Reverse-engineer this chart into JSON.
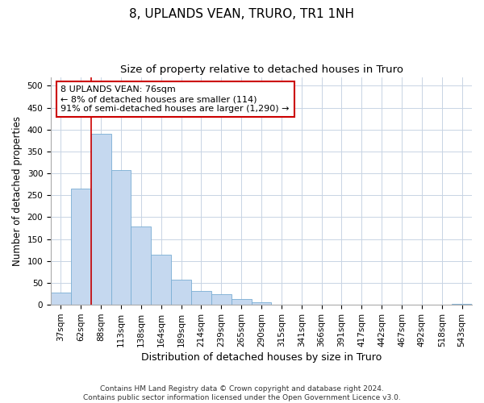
{
  "title": "8, UPLANDS VEAN, TRURO, TR1 1NH",
  "subtitle": "Size of property relative to detached houses in Truro",
  "xlabel": "Distribution of detached houses by size in Truro",
  "ylabel": "Number of detached properties",
  "footer_line1": "Contains HM Land Registry data © Crown copyright and database right 2024.",
  "footer_line2": "Contains public sector information licensed under the Open Government Licence v3.0.",
  "categories": [
    "37sqm",
    "62sqm",
    "88sqm",
    "113sqm",
    "138sqm",
    "164sqm",
    "189sqm",
    "214sqm",
    "239sqm",
    "265sqm",
    "290sqm",
    "315sqm",
    "341sqm",
    "366sqm",
    "391sqm",
    "417sqm",
    "442sqm",
    "467sqm",
    "492sqm",
    "518sqm",
    "543sqm"
  ],
  "values": [
    28,
    265,
    390,
    308,
    178,
    115,
    57,
    32,
    24,
    14,
    6,
    0,
    0,
    0,
    0,
    0,
    0,
    0,
    0,
    0,
    3
  ],
  "bar_color": "#c5d8ef",
  "bar_edge_color": "#7aaed4",
  "vline_x_idx": 1.5,
  "vline_color": "#cc0000",
  "annotation_text": "8 UPLANDS VEAN: 76sqm\n← 8% of detached houses are smaller (114)\n91% of semi-detached houses are larger (1,290) →",
  "annotation_box_color": "#ffffff",
  "annotation_box_edge": "#cc0000",
  "ylim": [
    0,
    520
  ],
  "yticks": [
    0,
    50,
    100,
    150,
    200,
    250,
    300,
    350,
    400,
    450,
    500
  ],
  "bg_color": "#ffffff",
  "grid_color": "#c8d4e4",
  "title_fontsize": 11,
  "subtitle_fontsize": 9.5,
  "tick_fontsize": 7.5,
  "ylabel_fontsize": 8.5,
  "xlabel_fontsize": 9,
  "annotation_fontsize": 8,
  "footer_fontsize": 6.5
}
